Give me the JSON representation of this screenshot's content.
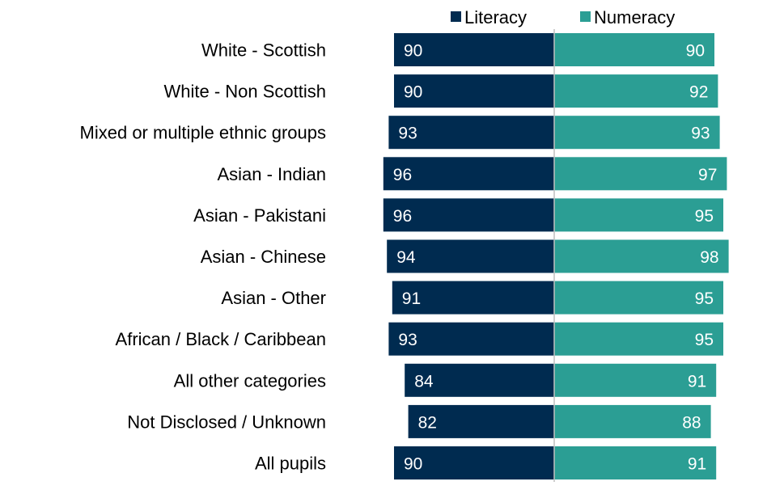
{
  "chart_data": {
    "type": "bar",
    "orientation": "diverging-horizontal",
    "categories": [
      "White - Scottish",
      "White - Non Scottish",
      "Mixed or multiple ethnic groups",
      "Asian - Indian",
      "Asian - Pakistani",
      "Asian - Chinese",
      "Asian - Other",
      "African / Black / Caribbean",
      "All other categories",
      "Not Disclosed / Unknown",
      "All pupils"
    ],
    "series": [
      {
        "name": "Literacy",
        "color": "#002b50",
        "values": [
          90,
          90,
          93,
          96,
          96,
          94,
          91,
          93,
          84,
          82,
          90
        ]
      },
      {
        "name": "Numeracy",
        "color": "#2b9e94",
        "values": [
          90,
          92,
          93,
          97,
          95,
          98,
          95,
          95,
          91,
          88,
          91
        ]
      }
    ],
    "legend": {
      "position": "top-right"
    },
    "grid": false
  }
}
